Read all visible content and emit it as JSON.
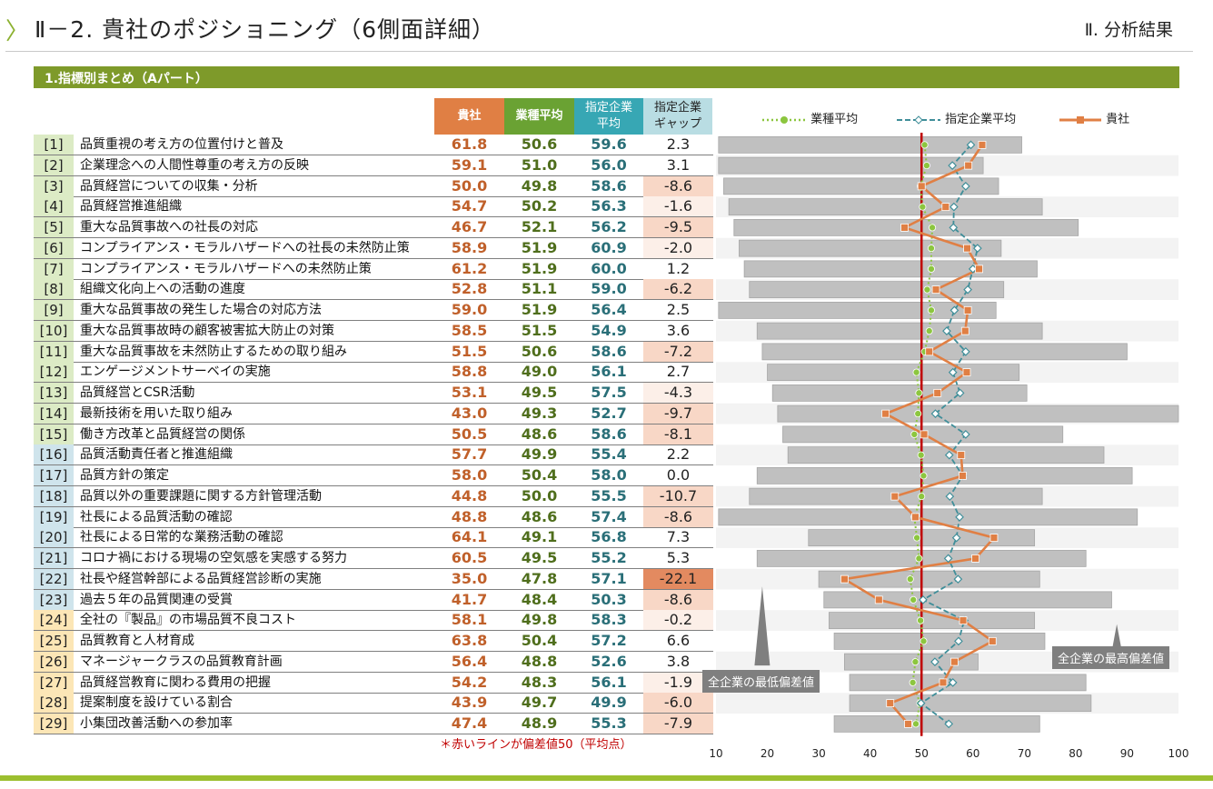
{
  "header": {
    "chevron": "〉",
    "title": "Ⅱ－2. 貴社のポジショニング（6側面詳細）",
    "section_tag": "Ⅱ. 分析結果"
  },
  "section_title": "1.指標別まとめ（Aパート）",
  "columns": {
    "company": "貴社",
    "industry_avg": "業種平均",
    "designated_avg": "指定企業\n平均",
    "designated_gap": "指定企業\nギャップ"
  },
  "rows": [
    {
      "idx": "[1]",
      "label": "品質重視の考え方の位置付けと普及",
      "company": "61.8",
      "industry": "50.6",
      "designated": "59.6",
      "gap": "2.3"
    },
    {
      "idx": "[2]",
      "label": "企業理念への人間性尊重の考え方の反映",
      "company": "59.1",
      "industry": "51.0",
      "designated": "56.0",
      "gap": "3.1"
    },
    {
      "idx": "[3]",
      "label": "品質経営についての収集・分析",
      "company": "50.0",
      "industry": "49.8",
      "designated": "58.6",
      "gap": "-8.6"
    },
    {
      "idx": "[4]",
      "label": "品質経営推進組織",
      "company": "54.7",
      "industry": "50.2",
      "designated": "56.3",
      "gap": "-1.6"
    },
    {
      "idx": "[5]",
      "label": "重大な品質事故への社長の対応",
      "company": "46.7",
      "industry": "52.1",
      "designated": "56.2",
      "gap": "-9.5"
    },
    {
      "idx": "[6]",
      "label": "コンプライアンス・モラルハザードへの社長の未然防止策",
      "company": "58.9",
      "industry": "51.9",
      "designated": "60.9",
      "gap": "-2.0"
    },
    {
      "idx": "[7]",
      "label": "コンプライアンス・モラルハザードへの未然防止策",
      "company": "61.2",
      "industry": "51.9",
      "designated": "60.0",
      "gap": "1.2"
    },
    {
      "idx": "[8]",
      "label": "組織文化向上への活動の進度",
      "company": "52.8",
      "industry": "51.1",
      "designated": "59.0",
      "gap": "-6.2"
    },
    {
      "idx": "[9]",
      "label": "重大な品質事故の発生した場合の対応方法",
      "company": "59.0",
      "industry": "51.9",
      "designated": "56.4",
      "gap": "2.5"
    },
    {
      "idx": "[10]",
      "label": "重大な品質事故時の顧客被害拡大防止の対策",
      "company": "58.5",
      "industry": "51.5",
      "designated": "54.9",
      "gap": "3.6"
    },
    {
      "idx": "[11]",
      "label": "重大な品質事故を未然防止するための取り組み",
      "company": "51.5",
      "industry": "50.6",
      "designated": "58.6",
      "gap": "-7.2"
    },
    {
      "idx": "[12]",
      "label": "エンゲージメントサーベイの実施",
      "company": "58.8",
      "industry": "49.0",
      "designated": "56.1",
      "gap": "2.7"
    },
    {
      "idx": "[13]",
      "label": "品質経営とCSR活動",
      "company": "53.1",
      "industry": "49.5",
      "designated": "57.5",
      "gap": "-4.3"
    },
    {
      "idx": "[14]",
      "label": "最新技術を用いた取り組み",
      "company": "43.0",
      "industry": "49.3",
      "designated": "52.7",
      "gap": "-9.7"
    },
    {
      "idx": "[15]",
      "label": "働き方改革と品質経営の関係",
      "company": "50.5",
      "industry": "48.6",
      "designated": "58.6",
      "gap": "-8.1"
    },
    {
      "idx": "[16]",
      "label": "品質活動責任者と推進組織",
      "company": "57.7",
      "industry": "49.9",
      "designated": "55.4",
      "gap": "2.2"
    },
    {
      "idx": "[17]",
      "label": "品質方針の策定",
      "company": "58.0",
      "industry": "50.4",
      "designated": "58.0",
      "gap": "0.0"
    },
    {
      "idx": "[18]",
      "label": "品質以外の重要課題に関する方針管理活動",
      "company": "44.8",
      "industry": "50.0",
      "designated": "55.5",
      "gap": "-10.7"
    },
    {
      "idx": "[19]",
      "label": "社長による品質活動の確認",
      "company": "48.8",
      "industry": "48.6",
      "designated": "57.4",
      "gap": "-8.6"
    },
    {
      "idx": "[20]",
      "label": "社長による日常的な業務活動の確認",
      "company": "64.1",
      "industry": "49.1",
      "designated": "56.8",
      "gap": "7.3"
    },
    {
      "idx": "[21]",
      "label": "コロナ禍における現場の空気感を実感する努力",
      "company": "60.5",
      "industry": "49.5",
      "designated": "55.2",
      "gap": "5.3"
    },
    {
      "idx": "[22]",
      "label": "社長や経営幹部による品質経営診断の実施",
      "company": "35.0",
      "industry": "47.8",
      "designated": "57.1",
      "gap": "-22.1"
    },
    {
      "idx": "[23]",
      "label": "過去５年の品質関連の受賞",
      "company": "41.7",
      "industry": "48.4",
      "designated": "50.3",
      "gap": "-8.6"
    },
    {
      "idx": "[24]",
      "label": "全社の『製品』の市場品質不良コスト",
      "company": "58.1",
      "industry": "49.8",
      "designated": "58.3",
      "gap": "-0.2"
    },
    {
      "idx": "[25]",
      "label": "品質教育と人材育成",
      "company": "63.8",
      "industry": "50.4",
      "designated": "57.2",
      "gap": "6.6"
    },
    {
      "idx": "[26]",
      "label": "マネージャークラスの品質教育計画",
      "company": "56.4",
      "industry": "48.8",
      "designated": "52.6",
      "gap": "3.8"
    },
    {
      "idx": "[27]",
      "label": "品質経営教育に関わる費用の把握",
      "company": "54.2",
      "industry": "48.3",
      "designated": "56.1",
      "gap": "-1.9"
    },
    {
      "idx": "[28]",
      "label": "提案制度を設けている割合",
      "company": "43.9",
      "industry": "49.7",
      "designated": "49.9",
      "gap": "-6.0"
    },
    {
      "idx": "[29]",
      "label": "小集団改善活動への参加率",
      "company": "47.4",
      "industry": "48.9",
      "designated": "55.3",
      "gap": "-7.9"
    }
  ],
  "footnote": "＊赤いラインが偏差値50（平均点）",
  "callouts": {
    "min": "全企業の最低偏差値",
    "max": "全企業の最高偏差値"
  },
  "colors": {
    "accent_green": "#7e9a2a",
    "company": "#e07f44",
    "industry": "#8cc63f",
    "designated": "#3f8e99",
    "reference_line": "#c00000",
    "range_bar": "#c0c0c0"
  },
  "chart_data": {
    "type": "range-bar-with-lines",
    "xlim": [
      10,
      100
    ],
    "xticks": [
      10,
      20,
      30,
      40,
      50,
      60,
      70,
      80,
      90,
      100
    ],
    "reference_value": 50,
    "legend": [
      "業種平均",
      "指定企業平均",
      "貴社"
    ],
    "ranges": [
      [
        10.5,
        69.5
      ],
      [
        10.5,
        62
      ],
      [
        11.5,
        65
      ],
      [
        12.5,
        73.5
      ],
      [
        13.5,
        80.5
      ],
      [
        14.5,
        65.5
      ],
      [
        15.5,
        72.5
      ],
      [
        16.5,
        66
      ],
      [
        10.5,
        64.5
      ],
      [
        18,
        73.5
      ],
      [
        19,
        90
      ],
      [
        20,
        69
      ],
      [
        21,
        70.5
      ],
      [
        22,
        100
      ],
      [
        23,
        77.5
      ],
      [
        24,
        85.5
      ],
      [
        18,
        91
      ],
      [
        16.5,
        73.5
      ],
      [
        10.5,
        92
      ],
      [
        28,
        72
      ],
      [
        18,
        82
      ],
      [
        30,
        73
      ],
      [
        31,
        87
      ],
      [
        32,
        72
      ],
      [
        33,
        74
      ],
      [
        35,
        61
      ],
      [
        36,
        82
      ],
      [
        36,
        83
      ],
      [
        33,
        73
      ]
    ],
    "series": [
      {
        "name": "業種平均",
        "values": [
          50.6,
          51.0,
          49.8,
          50.2,
          52.1,
          51.9,
          51.9,
          51.1,
          51.9,
          51.5,
          50.6,
          49.0,
          49.5,
          49.3,
          48.6,
          49.9,
          50.4,
          50.0,
          48.6,
          49.1,
          49.5,
          47.8,
          48.4,
          49.8,
          50.4,
          48.8,
          48.3,
          49.7,
          48.9
        ]
      },
      {
        "name": "指定企業平均",
        "values": [
          59.6,
          56.0,
          58.6,
          56.3,
          56.2,
          60.9,
          60.0,
          59.0,
          56.4,
          54.9,
          58.6,
          56.1,
          57.5,
          52.7,
          58.6,
          55.4,
          58.0,
          55.5,
          57.4,
          56.8,
          55.2,
          57.1,
          50.3,
          58.3,
          57.2,
          52.6,
          56.1,
          49.9,
          55.3
        ]
      },
      {
        "name": "貴社",
        "values": [
          61.8,
          59.1,
          50.0,
          54.7,
          46.7,
          58.9,
          61.2,
          52.8,
          59.0,
          58.5,
          51.5,
          58.8,
          53.1,
          43.0,
          50.5,
          57.7,
          58.0,
          44.8,
          48.8,
          64.1,
          60.5,
          35.0,
          41.7,
          58.1,
          63.8,
          56.4,
          54.2,
          43.9,
          47.4
        ]
      }
    ]
  }
}
